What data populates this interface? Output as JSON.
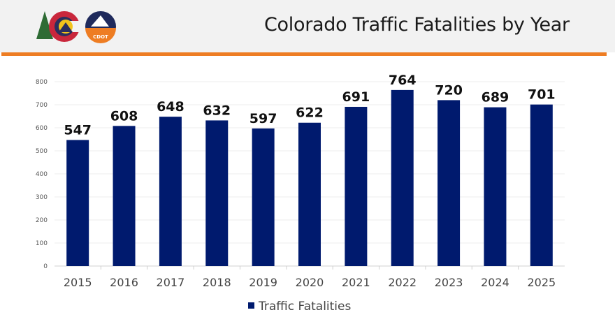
{
  "header": {
    "title": "Colorado Traffic Fatalities by Year",
    "logo_text": "CDOT"
  },
  "colors": {
    "bar": "#001a6e",
    "accent": "#ee7d23",
    "header_bg": "#f2f2f2"
  },
  "chart_data": {
    "type": "bar",
    "title": "Colorado Traffic Fatalities by Year",
    "categories": [
      "2015",
      "2016",
      "2017",
      "2018",
      "2019",
      "2020",
      "2021",
      "2022",
      "2023",
      "2024",
      "2025"
    ],
    "series": [
      {
        "name": "Traffic Fatalities",
        "values": [
          547,
          608,
          648,
          632,
          597,
          622,
          691,
          764,
          720,
          689,
          701
        ]
      }
    ],
    "ylim": [
      0,
      800
    ],
    "yticks": [
      0,
      100,
      200,
      300,
      400,
      500,
      600,
      700,
      800
    ],
    "grid": true,
    "legend": "bottom",
    "data_labels": true
  }
}
